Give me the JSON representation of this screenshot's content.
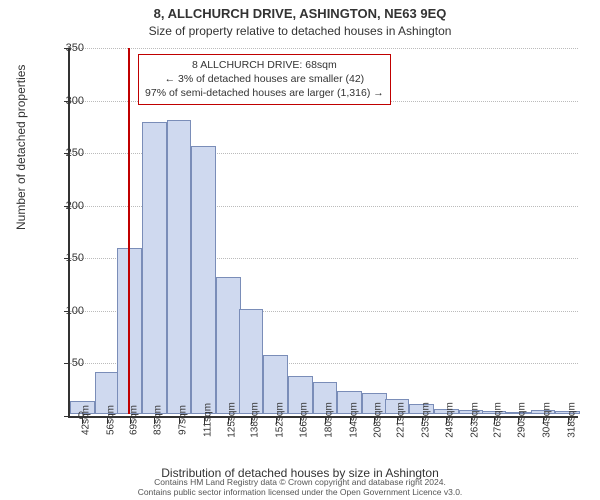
{
  "title_line1": "8, ALLCHURCH DRIVE, ASHINGTON, NE63 9EQ",
  "title_line2": "Size of property relative to detached houses in Ashington",
  "y_axis_label": "Number of detached properties",
  "x_axis_label": "Distribution of detached houses by size in Ashington",
  "footer_line1": "Contains HM Land Registry data © Crown copyright and database right 2024.",
  "footer_line2": "Contains public sector information licensed under the Open Government Licence v3.0.",
  "callout": {
    "line1": "8 ALLCHURCH DRIVE: 68sqm",
    "line2": "← 3% of detached houses are smaller (42)",
    "line3": "97% of semi-detached houses are larger (1,316) →"
  },
  "marker_value": 68,
  "chart": {
    "type": "histogram",
    "ylim": [
      0,
      350
    ],
    "ytick_step": 50,
    "x_start": 35,
    "x_end": 325,
    "bin_width": 14,
    "bar_color": "#cfd9ef",
    "bar_border": "#7a8db8",
    "grid_color": "#bbbbbb",
    "axis_color": "#333333",
    "marker_color": "#c00000",
    "background_color": "#ffffff",
    "xtick_labels": [
      "42sqm",
      "56sqm",
      "69sqm",
      "83sqm",
      "97sqm",
      "111sqm",
      "125sqm",
      "138sqm",
      "152sqm",
      "166sqm",
      "180sqm",
      "194sqm",
      "208sqm",
      "221sqm",
      "235sqm",
      "249sqm",
      "263sqm",
      "276sqm",
      "290sqm",
      "304sqm",
      "318sqm"
    ],
    "xtick_values": [
      42,
      56,
      69,
      83,
      97,
      111,
      125,
      138,
      152,
      166,
      180,
      194,
      208,
      221,
      235,
      249,
      263,
      276,
      290,
      304,
      318
    ],
    "bars": [
      {
        "x": 42,
        "value": 12
      },
      {
        "x": 56,
        "value": 40
      },
      {
        "x": 69,
        "value": 158
      },
      {
        "x": 83,
        "value": 278
      },
      {
        "x": 97,
        "value": 280
      },
      {
        "x": 111,
        "value": 255
      },
      {
        "x": 125,
        "value": 130
      },
      {
        "x": 138,
        "value": 100
      },
      {
        "x": 152,
        "value": 56
      },
      {
        "x": 166,
        "value": 36
      },
      {
        "x": 180,
        "value": 30
      },
      {
        "x": 194,
        "value": 22
      },
      {
        "x": 208,
        "value": 20
      },
      {
        "x": 221,
        "value": 14
      },
      {
        "x": 235,
        "value": 10
      },
      {
        "x": 249,
        "value": 5
      },
      {
        "x": 263,
        "value": 4
      },
      {
        "x": 276,
        "value": 3
      },
      {
        "x": 290,
        "value": 2
      },
      {
        "x": 304,
        "value": 4
      },
      {
        "x": 318,
        "value": 3
      }
    ]
  }
}
